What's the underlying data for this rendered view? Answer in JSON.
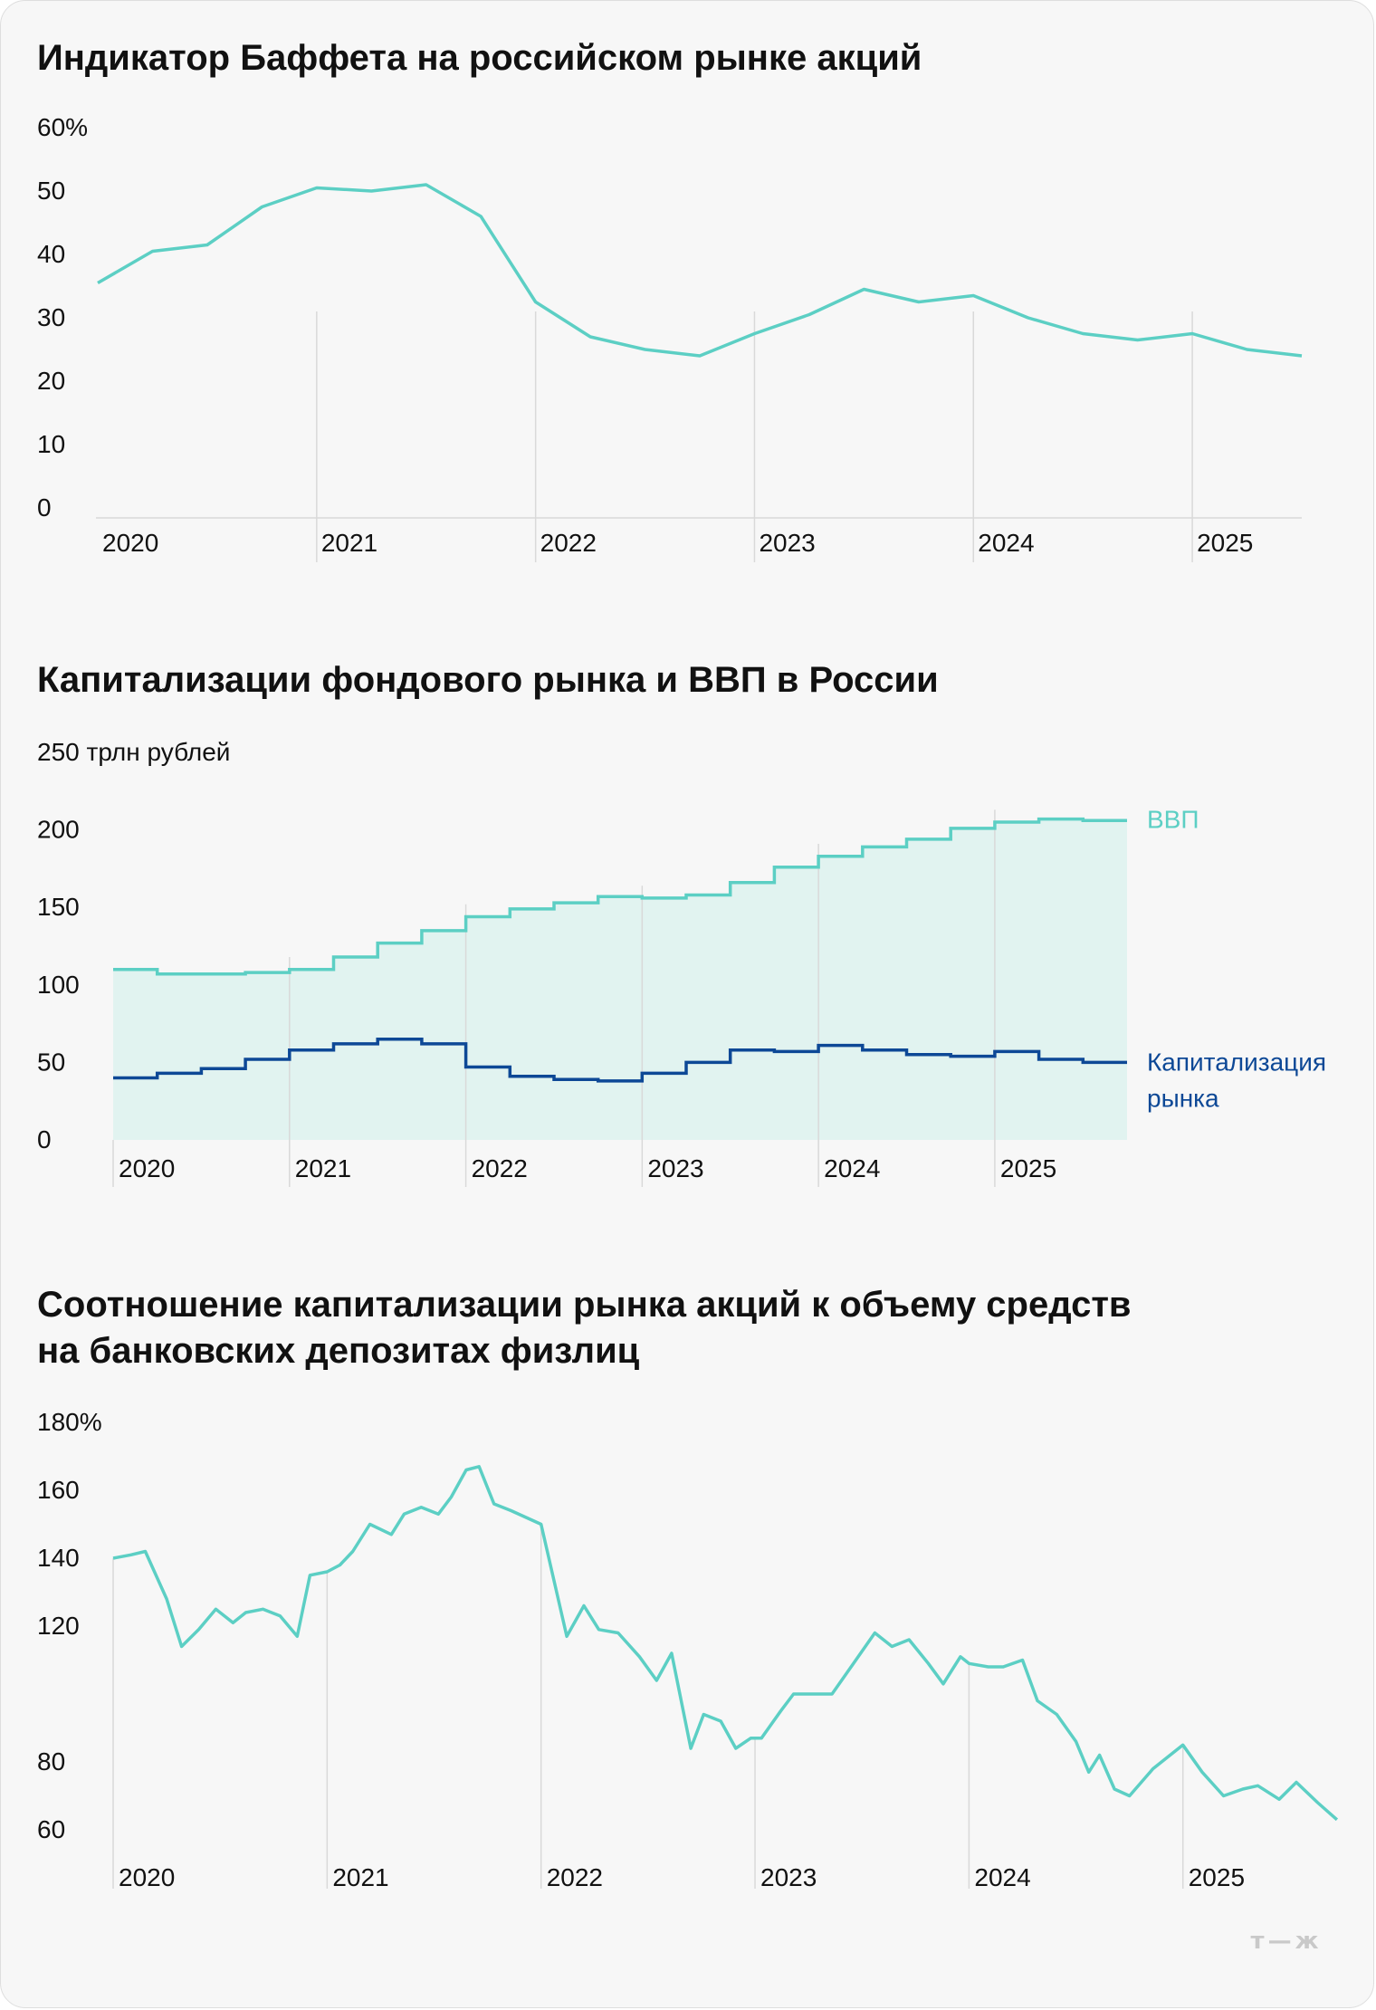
{
  "colors": {
    "teal": "#5ccfc4",
    "navy": "#0d4896",
    "area": "#e1f3f0",
    "grid": "#d9d9d9",
    "text": "#111111"
  },
  "logo_text": "т—ж",
  "chart_data": [
    {
      "type": "line",
      "title": "Индикатор Баффета на российском рынке акций",
      "ylabel": "",
      "ylim": [
        0,
        60
      ],
      "y_ticks": [
        0,
        10,
        20,
        30,
        40,
        50,
        60
      ],
      "y_tick_labels": [
        "0",
        "10",
        "20",
        "30",
        "40",
        "50",
        "60%"
      ],
      "xlim": [
        2020.0,
        2025.5
      ],
      "x_ticks": [
        2020,
        2021,
        2022,
        2023,
        2024,
        2025
      ],
      "x_tick_labels": [
        "2020",
        "2021",
        "2022",
        "2023",
        "2024",
        "2025"
      ],
      "series": [
        {
          "name": "Индикатор Баффета",
          "color": "#5ccfc4",
          "x": [
            2020.0,
            2020.25,
            2020.5,
            2020.75,
            2021.0,
            2021.25,
            2021.5,
            2021.75,
            2022.0,
            2022.25,
            2022.5,
            2022.75,
            2023.0,
            2023.25,
            2023.5,
            2023.75,
            2024.0,
            2024.25,
            2024.5,
            2024.75,
            2025.0,
            2025.25,
            2025.5
          ],
          "values": [
            35.5,
            40.5,
            41.5,
            47.5,
            50.5,
            50.0,
            51.0,
            46.0,
            32.5,
            27.0,
            25.0,
            24.0,
            27.5,
            30.5,
            34.5,
            32.5,
            33.5,
            30.0,
            27.5,
            26.5,
            27.5,
            25.0,
            24.0
          ]
        }
      ]
    },
    {
      "type": "area",
      "title": "Капитализации фондового рынка и ВВП в России",
      "ylabel": "250 трлн рублей",
      "ylim": [
        0,
        250
      ],
      "y_ticks": [
        0,
        50,
        100,
        150,
        200,
        250
      ],
      "y_tick_labels": [
        "0",
        "50",
        "100",
        "150",
        "200",
        "250 трлн рублей"
      ],
      "xlim": [
        2020.0,
        2025.75
      ],
      "x_ticks": [
        2020,
        2021,
        2022,
        2023,
        2024,
        2025
      ],
      "x_tick_labels": [
        "2020",
        "2021",
        "2022",
        "2023",
        "2024",
        "2025"
      ],
      "step": 0.25,
      "series": [
        {
          "name": "ВВП",
          "label": "ВВП",
          "color": "#5ccfc4",
          "fill": "#e1f3f0",
          "values": [
            110,
            107,
            107,
            108,
            110,
            118,
            127,
            135,
            144,
            149,
            153,
            157,
            156,
            158,
            166,
            176,
            183,
            189,
            194,
            201,
            205,
            207,
            206
          ]
        },
        {
          "name": "Капитализация рынка",
          "label_lines": [
            "Капитализация",
            "рынка"
          ],
          "color": "#0d4896",
          "values": [
            40,
            43,
            46,
            52,
            58,
            62,
            65,
            62,
            47,
            41,
            39,
            38,
            43,
            50,
            58,
            57,
            61,
            58,
            55,
            54,
            57,
            52,
            50
          ]
        }
      ]
    },
    {
      "type": "line",
      "title_lines": [
        "Соотношение капитализации рынка акций к объему средств",
        "на банковских депозитах физлиц"
      ],
      "ylabel": "",
      "ylim": [
        60,
        180
      ],
      "y_ticks": [
        60,
        80,
        120,
        140,
        160,
        180
      ],
      "y_tick_labels": [
        "60",
        "80",
        "120",
        "140",
        "160",
        "180%"
      ],
      "xlim": [
        2020.0,
        2025.75
      ],
      "x_ticks": [
        2020,
        2021,
        2022,
        2023,
        2024,
        2025
      ],
      "x_tick_labels": [
        "2020",
        "2021",
        "2022",
        "2023",
        "2024",
        "2025"
      ],
      "series": [
        {
          "name": "Соотношение",
          "color": "#5ccfc4",
          "x": [
            2020.0,
            2020.083,
            2020.15,
            2020.25,
            2020.32,
            2020.4,
            2020.48,
            2020.56,
            2020.62,
            2020.7,
            2020.78,
            2020.86,
            2020.92,
            2021.0,
            2021.06,
            2021.12,
            2021.2,
            2021.3,
            2021.36,
            2021.44,
            2021.52,
            2021.58,
            2021.65,
            2021.71,
            2021.78,
            2021.86,
            2022.0,
            2022.12,
            2022.2,
            2022.27,
            2022.36,
            2022.46,
            2022.54,
            2022.61,
            2022.7,
            2022.76,
            2022.84,
            2022.91,
            2022.98,
            2023.03,
            2023.12,
            2023.18,
            2023.27,
            2023.36,
            2023.46,
            2023.56,
            2023.64,
            2023.72,
            2023.81,
            2023.88,
            2023.96,
            2024.0,
            2024.09,
            2024.16,
            2024.25,
            2024.32,
            2024.41,
            2024.5,
            2024.56,
            2024.61,
            2024.68,
            2024.75,
            2024.86,
            2025.0,
            2025.09,
            2025.19,
            2025.28,
            2025.35,
            2025.45,
            2025.53,
            2025.63,
            2025.72
          ],
          "values": [
            140,
            141,
            142,
            128,
            114,
            119,
            125,
            121,
            124,
            125,
            123,
            117,
            135,
            136,
            138,
            142,
            150,
            147,
            153,
            155,
            153,
            158,
            166,
            167,
            156,
            154,
            150,
            117,
            126,
            119,
            118,
            111,
            104,
            112,
            84,
            94,
            92,
            84,
            87,
            87,
            95,
            100,
            100,
            100,
            109,
            118,
            114,
            116,
            109,
            103,
            111,
            109,
            108,
            108,
            110,
            98,
            94,
            86,
            77,
            82,
            72,
            70,
            78,
            85,
            77,
            70,
            72,
            73,
            69,
            74,
            68,
            63
          ]
        }
      ]
    }
  ]
}
